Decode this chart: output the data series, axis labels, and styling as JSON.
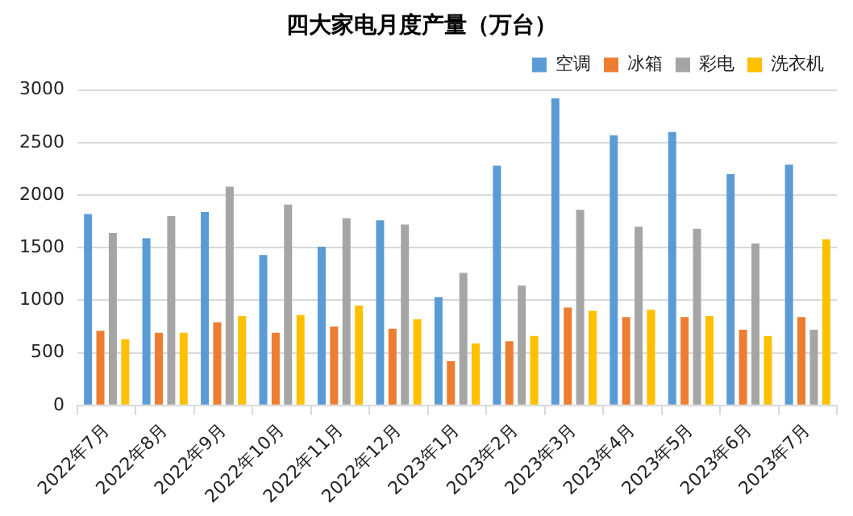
{
  "chart_data": {
    "type": "bar",
    "title": "四大家电月度产量（万台）",
    "categories": [
      "2022年7月",
      "2022年8月",
      "2022年9月",
      "2022年10月",
      "2022年11月",
      "2022年12月",
      "2023年1月",
      "2023年2月",
      "2023年3月",
      "2023年4月",
      "2023年5月",
      "2023年6月",
      "2023年7月"
    ],
    "series": [
      {
        "name": "空调",
        "color": "#5b9bd5",
        "values": [
          1820,
          1590,
          1840,
          1430,
          1510,
          1760,
          1030,
          2280,
          2920,
          2570,
          2600,
          2200,
          2290
        ]
      },
      {
        "name": "冰箱",
        "color": "#ed7d31",
        "values": [
          710,
          690,
          790,
          690,
          750,
          730,
          420,
          610,
          930,
          840,
          840,
          720,
          840
        ]
      },
      {
        "name": "彩电",
        "color": "#a5a5a5",
        "values": [
          1640,
          1800,
          2080,
          1910,
          1780,
          1720,
          1260,
          1140,
          1860,
          1700,
          1680,
          1540,
          720
        ]
      },
      {
        "name": "洗衣机",
        "color": "#ffc000",
        "values": [
          630,
          690,
          850,
          860,
          950,
          820,
          590,
          660,
          900,
          910,
          850,
          660,
          1580
        ]
      }
    ],
    "ylim": [
      0,
      3000
    ],
    "yticks": [
      0,
      500,
      1000,
      1500,
      2000,
      2500,
      3000
    ],
    "grid": "y",
    "legend": "top right"
  }
}
